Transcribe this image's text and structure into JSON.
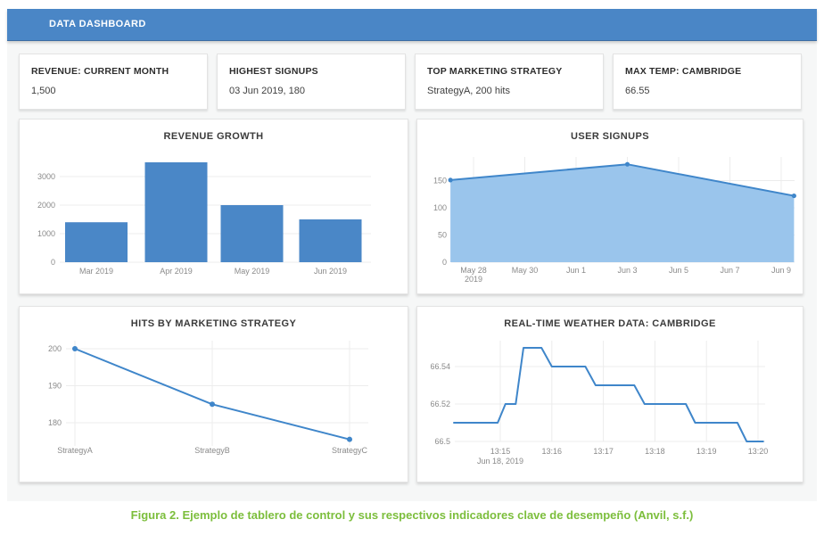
{
  "header": {
    "title": "DATA DASHBOARD"
  },
  "kpis": [
    {
      "title": "REVENUE: CURRENT MONTH",
      "value": "1,500"
    },
    {
      "title": "HIGHEST SIGNUPS",
      "value": "03 Jun 2019, 180"
    },
    {
      "title": "TOP MARKETING STRATEGY",
      "value": "StrategyA, 200 hits"
    },
    {
      "title": "MAX TEMP: CAMBRIDGE",
      "value": "66.55"
    }
  ],
  "colors": {
    "header_blue": "#4a86c6",
    "bar_fill": "#4a87c7",
    "line_blue": "#3f86ca",
    "area_fill": "#9ac5ec",
    "grid": "#ececec",
    "tick_text": "#8a8a8a",
    "caption_green": "#7cbe3c"
  },
  "chart_data": [
    {
      "id": "revenue-growth",
      "type": "bar",
      "title": "REVENUE GROWTH",
      "categories": [
        "Mar 2019",
        "Apr 2019",
        "May 2019",
        "Jun 2019"
      ],
      "values": [
        1400,
        3500,
        2000,
        1500
      ],
      "yticks": [
        0,
        1000,
        2000,
        3000
      ],
      "ylim": [
        0,
        3600
      ],
      "grid": "horizontal only",
      "legend": "none"
    },
    {
      "id": "user-signups",
      "type": "area",
      "title": "USER SIGNUPS",
      "x_base": "days after May 28, 2019",
      "xticks": [
        {
          "label": "May 28",
          "sublabel": "2019",
          "day": 0
        },
        {
          "label": "May 30",
          "day": 2
        },
        {
          "label": "Jun 1",
          "day": 4
        },
        {
          "label": "Jun 3",
          "day": 6
        },
        {
          "label": "Jun 5",
          "day": 8
        },
        {
          "label": "Jun 7",
          "day": 10
        },
        {
          "label": "Jun 9",
          "day": 12
        }
      ],
      "points": [
        {
          "day": -0.9,
          "value": 151
        },
        {
          "day": 6,
          "value": 180
        },
        {
          "day": 12.5,
          "value": 122
        }
      ],
      "peak_note": "peak 180 on Jun 3",
      "yticks": [
        0,
        50,
        100,
        150
      ],
      "ylim": [
        0,
        198
      ],
      "grid": "both",
      "legend": "none"
    },
    {
      "id": "hits-by-strategy",
      "type": "line",
      "title": "HITS BY MARKETING STRATEGY",
      "categories": [
        "StrategyA",
        "StrategyB",
        "StrategyC"
      ],
      "values": [
        200,
        185,
        175.5
      ],
      "yticks": [
        180,
        190,
        200
      ],
      "ylim": [
        173,
        203
      ],
      "grid": "both",
      "legend": "none"
    },
    {
      "id": "weather-cambridge",
      "type": "line",
      "subtype": "step",
      "title": "REAL-TIME WEATHER DATA: CAMBRIDGE",
      "x_base": "minutes after 13:14 on Jun 18, 2019",
      "xticks": [
        {
          "label": "13:15",
          "sublabel": "Jun 18, 2019",
          "t": 1
        },
        {
          "label": "13:16",
          "t": 2
        },
        {
          "label": "13:17",
          "t": 3
        },
        {
          "label": "13:18",
          "t": 4
        },
        {
          "label": "13:19",
          "t": 5
        },
        {
          "label": "13:20",
          "t": 6
        }
      ],
      "points": [
        [
          0.1,
          66.51
        ],
        [
          0.95,
          66.51
        ],
        [
          1.1,
          66.52
        ],
        [
          1.3,
          66.52
        ],
        [
          1.45,
          66.55
        ],
        [
          1.8,
          66.55
        ],
        [
          2.0,
          66.54
        ],
        [
          2.65,
          66.54
        ],
        [
          2.85,
          66.53
        ],
        [
          3.6,
          66.53
        ],
        [
          3.8,
          66.52
        ],
        [
          4.6,
          66.52
        ],
        [
          4.78,
          66.51
        ],
        [
          5.6,
          66.51
        ],
        [
          5.78,
          66.5
        ],
        [
          6.1,
          66.5
        ]
      ],
      "yticks": [
        66.5,
        66.52,
        66.54
      ],
      "ylim": [
        66.5,
        66.557
      ],
      "grid": "both",
      "legend": "none"
    }
  ],
  "caption": "Figura 2. Ejemplo de tablero de control y sus respectivos indicadores clave de desempeño (Anvil, s.f.)"
}
